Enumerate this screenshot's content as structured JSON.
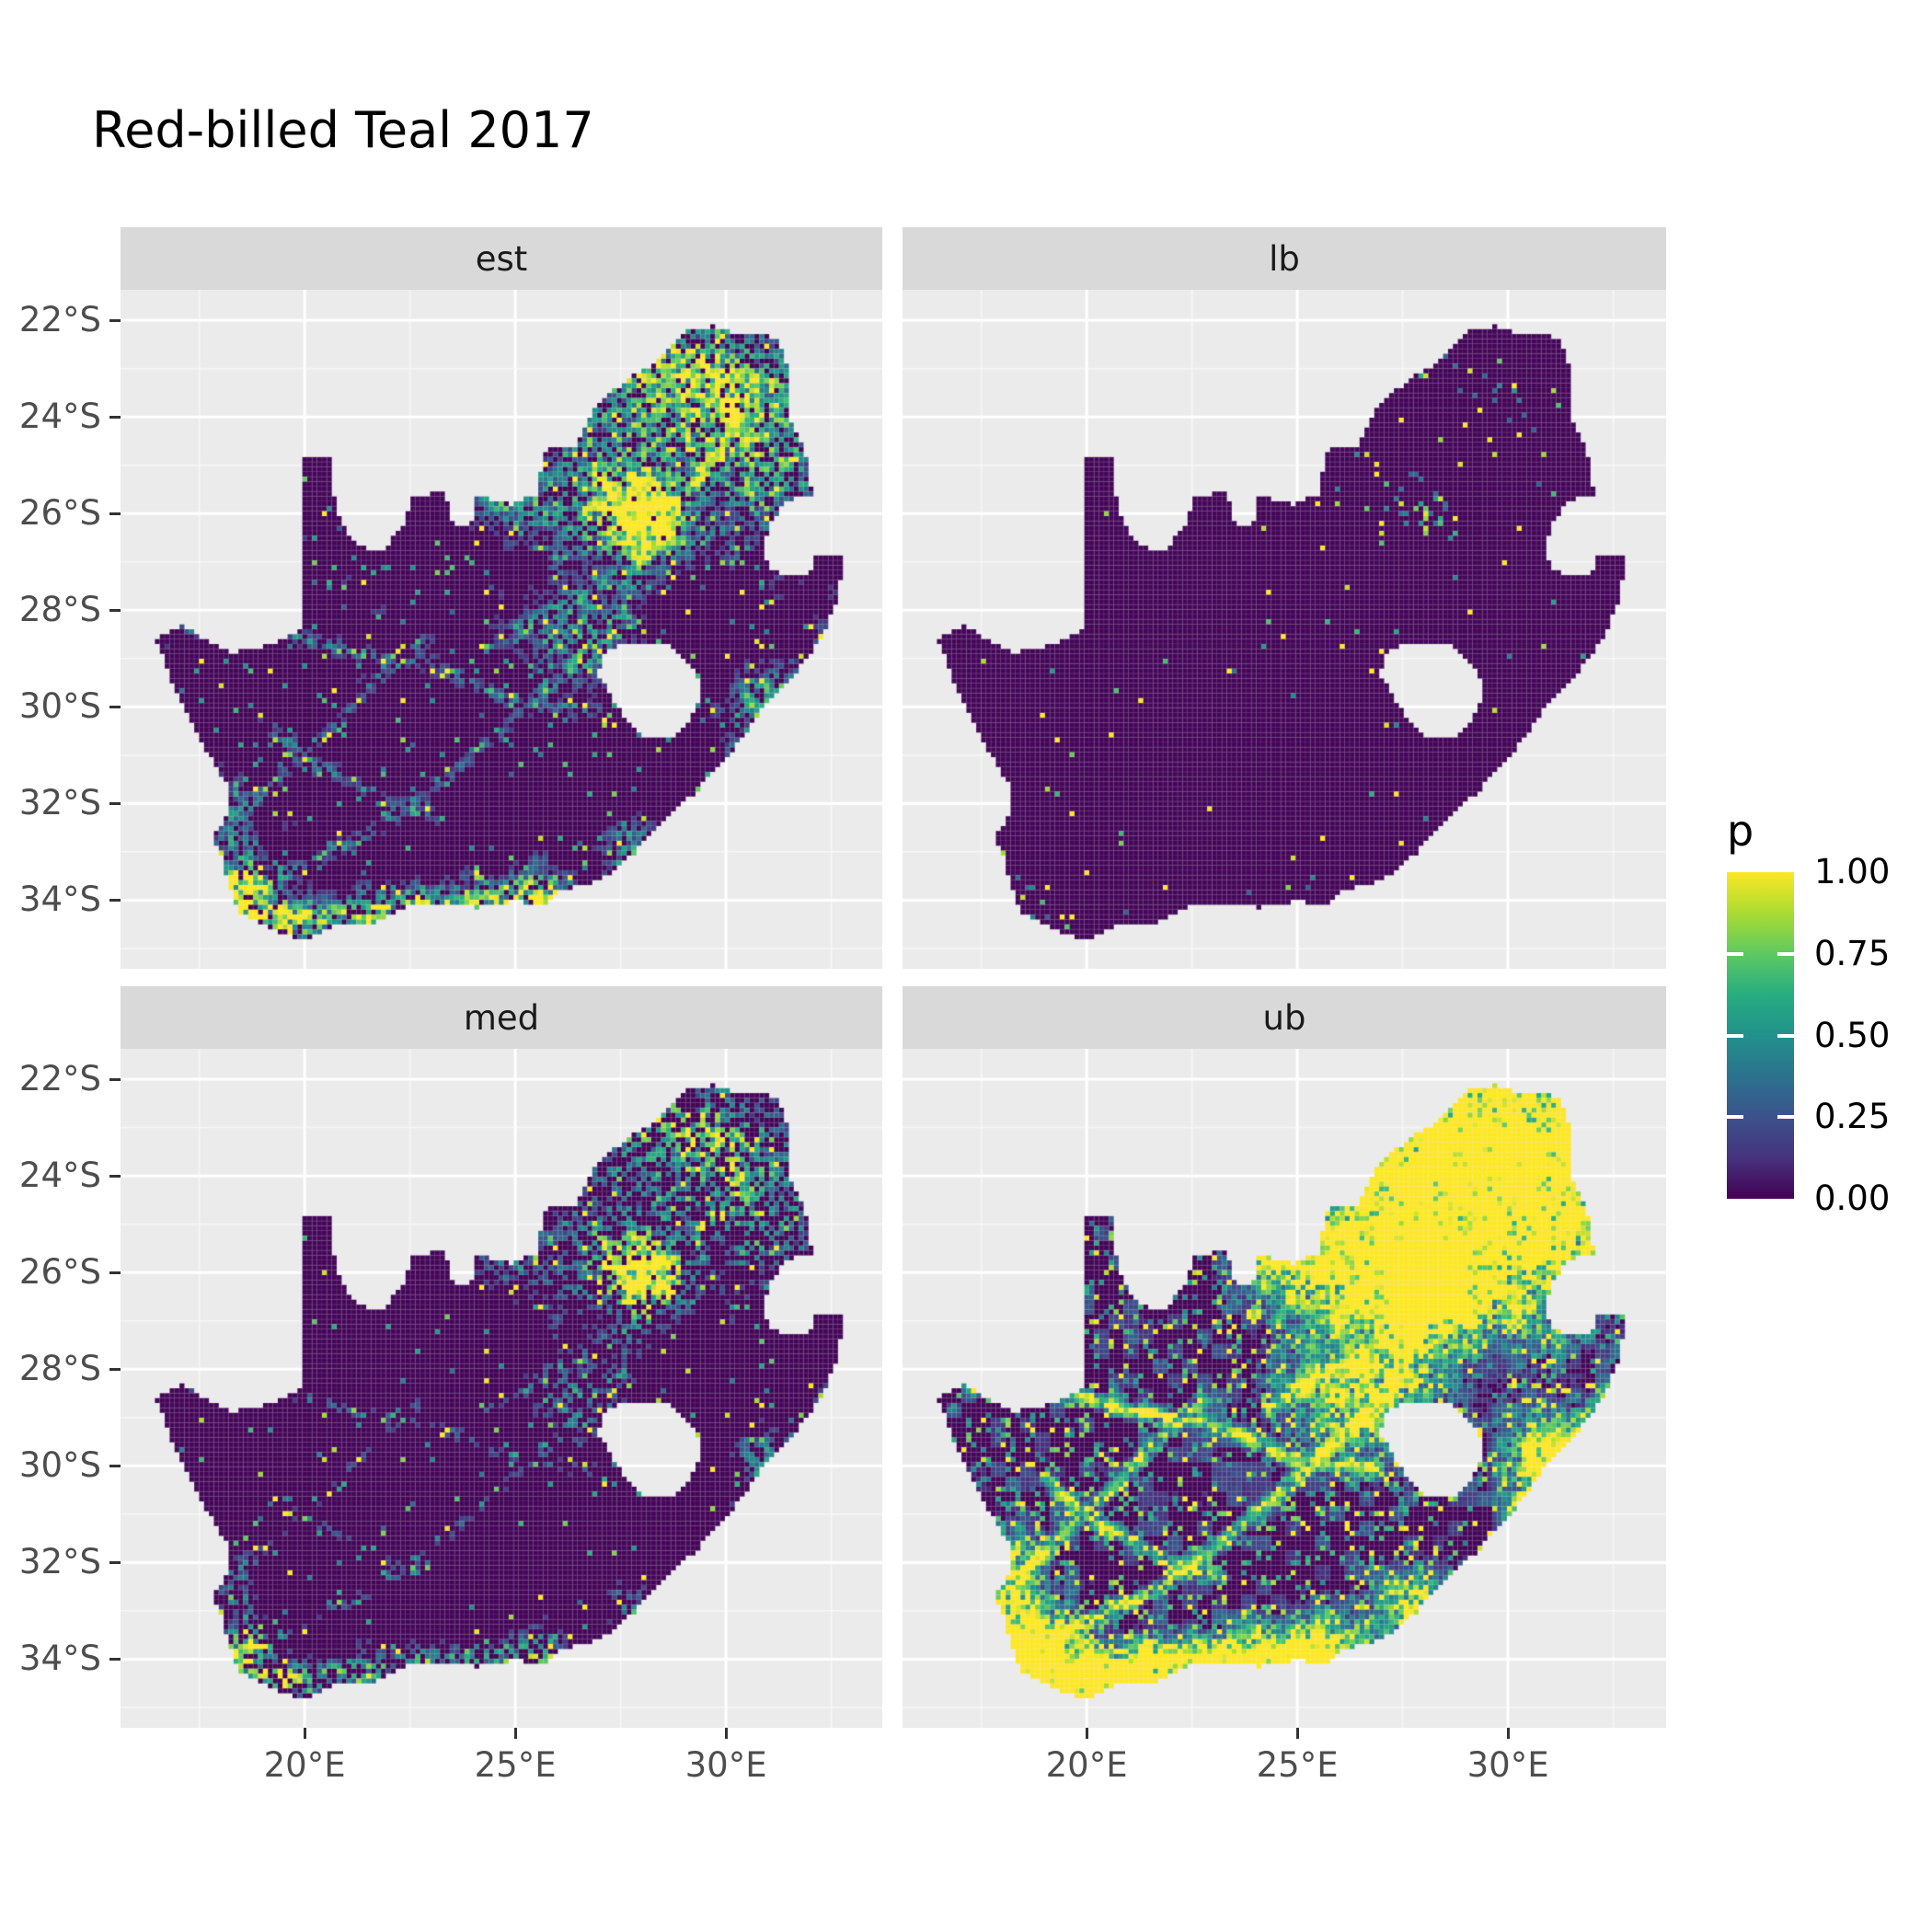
{
  "chart_data": {
    "type": "heatmap",
    "title": "Red-billed Teal 2017",
    "variable": "p",
    "region": "South Africa",
    "facets": [
      {
        "key": "est",
        "label": "est",
        "summary": "Point estimate of reporting probability: mostly near 0 (dark purple); dense mid/high values around Gauteng (~28E,26S), the north-east, Cape Town and the southern coastline; faint teal corridors through the interior."
      },
      {
        "key": "lb",
        "label": "lb",
        "summary": "Lower bound: near zero almost everywhere; only sparse yellow/green specks around Gauteng, the north-east and the far southern coast."
      },
      {
        "key": "med",
        "label": "med",
        "summary": "Median: similar pattern to the estimate but slightly sparser; Gauteng hotspot, north-eastern speckle and southern-coast band of green/yellow."
      },
      {
        "key": "ub",
        "label": "ub",
        "summary": "Upper bound: extensive high probabilities; large solid yellow blob over Gauteng and much of the north-east, yellow along the southern and south-western coasts, and a green network of corridors across the western interior."
      }
    ],
    "x_axis": {
      "domain": [
        15.63,
        33.71
      ],
      "ticks": [
        {
          "value": 20,
          "label": "20°E"
        },
        {
          "value": 25,
          "label": "25°E"
        },
        {
          "value": 30,
          "label": "30°E"
        }
      ]
    },
    "y_axis": {
      "domain": [
        -35.42,
        -21.37
      ],
      "ticks": [
        {
          "value": -22,
          "label": "22°S"
        },
        {
          "value": -24,
          "label": "24°S"
        },
        {
          "value": -26,
          "label": "26°S"
        },
        {
          "value": -28,
          "label": "28°S"
        },
        {
          "value": -30,
          "label": "30°S"
        },
        {
          "value": -32,
          "label": "32°S"
        },
        {
          "value": -34,
          "label": "34°S"
        }
      ]
    },
    "colorbar": {
      "title": "p",
      "range": [
        0,
        1
      ],
      "ticks": [
        {
          "value": 1.0,
          "label": "1.00"
        },
        {
          "value": 0.75,
          "label": "0.75"
        },
        {
          "value": 0.5,
          "label": "0.50"
        },
        {
          "value": 0.25,
          "label": "0.25"
        },
        {
          "value": 0.0,
          "label": "0.00"
        }
      ],
      "stops": [
        [
          0,
          "#440154"
        ],
        [
          0.125,
          "#46327e"
        ],
        [
          0.25,
          "#3b528b"
        ],
        [
          0.375,
          "#2c728e"
        ],
        [
          0.5,
          "#21918c"
        ],
        [
          0.625,
          "#27ad81"
        ],
        [
          0.75,
          "#5ec962"
        ],
        [
          0.875,
          "#aadc32"
        ],
        [
          1,
          "#fde725"
        ]
      ]
    },
    "map_outline": [
      [
        16.47,
        -28.58
      ],
      [
        17.1,
        -28.3
      ],
      [
        17.6,
        -28.6
      ],
      [
        18.3,
        -28.88
      ],
      [
        19.25,
        -28.7
      ],
      [
        19.98,
        -28.4
      ],
      [
        19.98,
        -24.78
      ],
      [
        20.6,
        -24.8
      ],
      [
        20.68,
        -25.6
      ],
      [
        20.85,
        -26.2
      ],
      [
        21.3,
        -26.7
      ],
      [
        21.9,
        -26.75
      ],
      [
        22.35,
        -26.2
      ],
      [
        22.55,
        -25.65
      ],
      [
        23.35,
        -25.55
      ],
      [
        23.5,
        -26.2
      ],
      [
        23.95,
        -26.25
      ],
      [
        24.05,
        -25.65
      ],
      [
        24.5,
        -25.72
      ],
      [
        24.9,
        -25.8
      ],
      [
        25.55,
        -25.6
      ],
      [
        25.65,
        -24.7
      ],
      [
        26.45,
        -24.6
      ],
      [
        26.9,
        -23.75
      ],
      [
        27.7,
        -23.2
      ],
      [
        28.3,
        -22.9
      ],
      [
        29.05,
        -22.2
      ],
      [
        29.7,
        -22.12
      ],
      [
        30.3,
        -22.3
      ],
      [
        31.2,
        -22.35
      ],
      [
        31.55,
        -23.2
      ],
      [
        31.55,
        -24.1
      ],
      [
        31.95,
        -24.9
      ],
      [
        32.05,
        -25.65
      ],
      [
        31.4,
        -25.72
      ],
      [
        31.0,
        -26.3
      ],
      [
        30.85,
        -26.9
      ],
      [
        31.15,
        -27.2
      ],
      [
        31.95,
        -27.32
      ],
      [
        32.15,
        -26.85
      ],
      [
        32.85,
        -26.85
      ],
      [
        32.6,
        -27.9
      ],
      [
        32.25,
        -28.6
      ],
      [
        31.6,
        -29.35
      ],
      [
        30.9,
        -30.0
      ],
      [
        30.2,
        -30.85
      ],
      [
        29.35,
        -31.7
      ],
      [
        28.5,
        -32.4
      ],
      [
        27.8,
        -33.05
      ],
      [
        27.0,
        -33.6
      ],
      [
        26.1,
        -33.8
      ],
      [
        25.65,
        -34.1
      ],
      [
        25.0,
        -34.02
      ],
      [
        24.15,
        -34.15
      ],
      [
        23.35,
        -34.12
      ],
      [
        22.55,
        -34.1
      ],
      [
        21.75,
        -34.45
      ],
      [
        20.75,
        -34.5
      ],
      [
        20.0,
        -34.85
      ],
      [
        19.3,
        -34.65
      ],
      [
        18.8,
        -34.4
      ],
      [
        18.45,
        -34.3
      ],
      [
        18.3,
        -33.9
      ],
      [
        18.05,
        -33.2
      ],
      [
        17.85,
        -32.7
      ],
      [
        18.25,
        -32.05
      ],
      [
        18.15,
        -31.6
      ],
      [
        17.6,
        -30.8
      ],
      [
        17.05,
        -29.9
      ],
      [
        16.75,
        -29.25
      ]
    ],
    "lesotho_hole": [
      [
        27.05,
        -28.92
      ],
      [
        27.55,
        -28.65
      ],
      [
        28.15,
        -28.7
      ],
      [
        28.75,
        -28.75
      ],
      [
        29.2,
        -29.15
      ],
      [
        29.45,
        -29.55
      ],
      [
        29.28,
        -30.1
      ],
      [
        28.85,
        -30.6
      ],
      [
        28.15,
        -30.65
      ],
      [
        27.75,
        -30.4
      ],
      [
        27.35,
        -29.9
      ],
      [
        26.98,
        -29.35
      ]
    ],
    "render": {
      "cell_deg": 0.117,
      "hotspots": [
        [
          28.05,
          -26.15,
          0.5,
          0.42,
          1.7
        ],
        [
          27.6,
          -25.7,
          1.25,
          0.95,
          0.8
        ],
        [
          29.5,
          -23.6,
          1.6,
          0.9,
          0.6
        ],
        [
          30.9,
          -24.9,
          0.9,
          1.1,
          0.55
        ],
        [
          28.8,
          -22.9,
          1.3,
          0.55,
          0.55
        ],
        [
          26.5,
          -28.6,
          0.9,
          0.7,
          0.45
        ],
        [
          30.85,
          -29.85,
          0.5,
          0.5,
          0.55
        ],
        [
          27.85,
          -33.0,
          0.55,
          0.45,
          0.5
        ],
        [
          25.55,
          -33.85,
          0.55,
          0.4,
          0.6
        ],
        [
          18.6,
          -33.95,
          0.55,
          0.5,
          1.0
        ],
        [
          19.5,
          -34.45,
          0.6,
          0.28,
          0.8
        ],
        [
          21.0,
          -34.35,
          0.8,
          0.28,
          0.7
        ],
        [
          22.8,
          -34.1,
          0.9,
          0.3,
          0.65
        ],
        [
          24.6,
          -34.05,
          0.8,
          0.3,
          0.6
        ],
        [
          18.35,
          -32.6,
          0.35,
          0.7,
          0.45
        ],
        [
          24.8,
          -25.8,
          0.6,
          0.4,
          0.5
        ]
      ],
      "networks": [
        {
          "w": 0.55,
          "pts": [
            [
              26.9,
              -30.1
            ],
            [
              25.0,
              -29.9
            ],
            [
              23.3,
              -29.2
            ],
            [
              21.3,
              -28.9
            ],
            [
              19.2,
              -28.45
            ],
            [
              17.3,
              -28.4
            ]
          ]
        },
        {
          "w": 0.5,
          "pts": [
            [
              28.2,
              -26.9
            ],
            [
              26.8,
              -27.6
            ],
            [
              25.6,
              -28.2
            ],
            [
              24.3,
              -28.8
            ]
          ]
        },
        {
          "w": 0.5,
          "pts": [
            [
              18.8,
              -33.7
            ],
            [
              20.2,
              -33.2
            ],
            [
              21.8,
              -32.5
            ],
            [
              23.2,
              -31.6
            ],
            [
              24.4,
              -30.7
            ],
            [
              25.6,
              -29.8
            ],
            [
              26.8,
              -28.9
            ],
            [
              27.6,
              -27.9
            ],
            [
              28.0,
              -26.9
            ]
          ]
        },
        {
          "w": 0.45,
          "pts": [
            [
              18.3,
              -32.3
            ],
            [
              19.6,
              -31.3
            ],
            [
              20.8,
              -30.3
            ],
            [
              21.8,
              -29.4
            ],
            [
              22.8,
              -28.6
            ]
          ]
        },
        {
          "w": 0.4,
          "pts": [
            [
              19.0,
              -30.3
            ],
            [
              20.3,
              -31.2
            ],
            [
              21.8,
              -31.9
            ],
            [
              23.2,
              -32.3
            ]
          ]
        },
        {
          "w": 0.4,
          "pts": [
            [
              30.0,
              -31.1
            ],
            [
              30.9,
              -30.1
            ],
            [
              31.7,
              -29.2
            ],
            [
              32.3,
              -28.5
            ]
          ]
        },
        {
          "w": 0.4,
          "pts": [
            [
              29.0,
              -25.6
            ],
            [
              29.8,
              -24.7
            ],
            [
              30.3,
              -23.9
            ],
            [
              29.8,
              -23.2
            ]
          ]
        }
      ],
      "facet_params": {
        "est": {
          "hotGain": 0.85,
          "netGain": 0.5,
          "sigmaScale": 1.0,
          "speckleHi": 0.02,
          "speckleLo": 0.07,
          "sparsity": 0.3,
          "blobAmp": 0.3,
          "blobThresh": 0.8,
          "floor": 0.13
        },
        "lb": {
          "hotGain": 0.3,
          "netGain": 0.1,
          "sigmaScale": 0.8,
          "speckleHi": 0.007,
          "speckleLo": 0.016,
          "sparsity": 0.8,
          "blobAmp": 0.1,
          "blobThresh": 0.94,
          "floor": 0.3
        },
        "med": {
          "hotGain": 0.68,
          "netGain": 0.36,
          "sigmaScale": 0.95,
          "speckleHi": 0.012,
          "speckleLo": 0.05,
          "sparsity": 0.52,
          "blobAmp": 0.22,
          "blobThresh": 0.84,
          "floor": 0.15
        },
        "ub": {
          "hotGain": 1.55,
          "netGain": 1.15,
          "sigmaScale": 1.3,
          "speckleHi": 0.1,
          "speckleLo": 0.25,
          "sparsity": 0.0,
          "blobAmp": 0.65,
          "blobThresh": 0.58,
          "floor": 0.1
        }
      }
    },
    "style": {
      "background": "#FFFFFF",
      "panel_bg": "#EBEBEB",
      "strip_bg": "#D9D9D9",
      "grid_major": "#FFFFFF",
      "axis_text": "#4D4D4D",
      "strip_text": "#1A1A1A",
      "title_color": "#000000",
      "low_fill": "#440154",
      "high_fill": "#FDE725"
    },
    "legend_position": "right"
  }
}
